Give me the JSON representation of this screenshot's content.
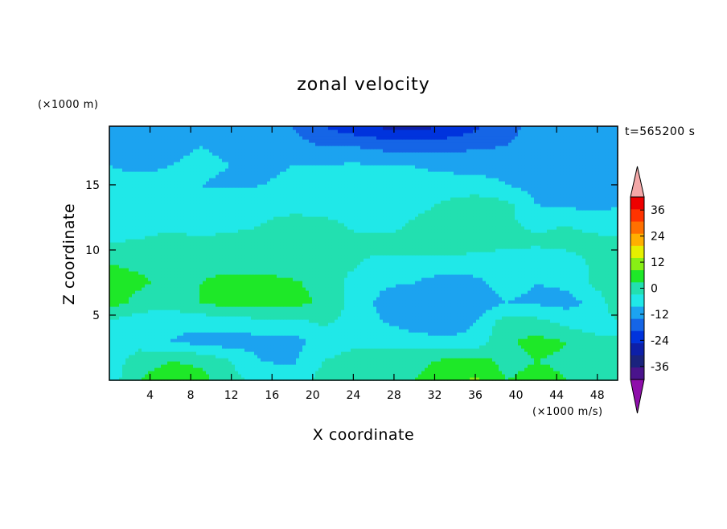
{
  "chart_data": {
    "type": "heatmap",
    "title": "zonal velocity",
    "xlabel": "X coordinate",
    "ylabel": "Z coordinate",
    "x_unit": "(×1000 m/s)",
    "y_unit": "(×1000 m)",
    "time_label": "t=565200 s",
    "xlim": [
      0,
      50
    ],
    "ylim": [
      0,
      19.5
    ],
    "x_ticks": [
      "4",
      "8",
      "12",
      "16",
      "20",
      "24",
      "28",
      "32",
      "36",
      "40",
      "44",
      "48"
    ],
    "y_ticks": [
      "5",
      "10",
      "15"
    ],
    "colorbar": {
      "labels": [
        "36",
        "24",
        "12",
        "0",
        "-12",
        "-24",
        "-36"
      ],
      "levels": [
        -42,
        -36,
        -30,
        -24,
        -18,
        -12,
        -6,
        0,
        6,
        12,
        18,
        24,
        30,
        36,
        42
      ],
      "colors": [
        "#4a148c",
        "#1a237e",
        "#0d1fa8",
        "#0033dd",
        "#1565e6",
        "#1ca3f0",
        "#20e8e8",
        "#22e0b0",
        "#1ee828",
        "#88f015",
        "#e6f000",
        "#ffb000",
        "#ff7000",
        "#ff3300",
        "#ee0000"
      ],
      "under_color": "#8e0eaa",
      "over_color": "#f4a8a8"
    },
    "x": [
      0,
      3,
      6,
      9,
      12,
      15,
      18,
      21,
      24,
      27,
      30,
      33,
      36,
      39,
      42,
      45,
      48,
      50
    ],
    "z": [
      0,
      1.5,
      3,
      4.5,
      6,
      7.5,
      9,
      10.5,
      12,
      13.5,
      15,
      16.5,
      18,
      19.5
    ],
    "values": [
      [
        -3,
        6,
        9,
        8,
        2,
        -2,
        -3,
        2,
        4,
        5,
        6,
        10,
        13,
        6,
        8,
        6,
        3,
        2
      ],
      [
        -4,
        4,
        6,
        5,
        0,
        -6,
        -7,
        0,
        3,
        4,
        4,
        7,
        9,
        4,
        6,
        5,
        2,
        1
      ],
      [
        -6,
        -3,
        -6,
        -8,
        -9,
        -8,
        -8,
        -4,
        -2,
        -2,
        -3,
        -4,
        -4,
        5,
        8,
        6,
        2,
        0
      ],
      [
        -1,
        -4,
        -5,
        -4,
        -3,
        -2,
        -2,
        1,
        -2,
        -6,
        -9,
        -11,
        -6,
        3,
        2,
        -2,
        -4,
        0
      ],
      [
        9,
        4,
        3,
        6,
        9,
        9,
        8,
        5,
        -2,
        -8,
        -11,
        -12,
        -10,
        -6,
        -7,
        -8,
        -4,
        5
      ],
      [
        8,
        7,
        4,
        6,
        10,
        8,
        7,
        4,
        -2,
        -5,
        -6,
        -9,
        -7,
        -4,
        -6,
        -5,
        2,
        6
      ],
      [
        6,
        5,
        3,
        3,
        2,
        4,
        2,
        1,
        1,
        -3,
        -3,
        -2,
        -4,
        -5,
        -6,
        -4,
        2,
        4
      ],
      [
        0,
        1,
        3,
        2,
        3,
        2,
        1,
        2,
        2,
        3,
        3,
        4,
        3,
        2,
        1,
        2,
        2,
        2
      ],
      [
        -3,
        -3,
        -2,
        -3,
        -2,
        0,
        3,
        2,
        -1,
        -3,
        1,
        3,
        3,
        1,
        -1,
        0,
        -2,
        -4
      ],
      [
        -4,
        -5,
        -6,
        -5,
        -2,
        -2,
        -3,
        -3,
        -5,
        -3,
        -2,
        1,
        4,
        2,
        -6,
        -7,
        -8,
        -6
      ],
      [
        -5,
        -4,
        -5,
        -6,
        -7,
        -6,
        -5,
        -6,
        -6,
        -6,
        -5,
        -4,
        -4,
        -6,
        -8,
        -10,
        -9,
        -8
      ],
      [
        -6,
        -7,
        -6,
        -5,
        -6,
        -7,
        -6,
        -6,
        -5,
        -6,
        -6,
        -7,
        -8,
        -7,
        -7,
        -8,
        -7,
        -6
      ],
      [
        -7,
        -8,
        -7,
        -6,
        -7,
        -8,
        -10,
        -12,
        -12,
        -14,
        -15,
        -14,
        -13,
        -12,
        -10,
        -8,
        -7,
        -6
      ],
      [
        -6,
        -6,
        -6,
        -7,
        -8,
        -9,
        -12,
        -18,
        -22,
        -25,
        -26,
        -24,
        -19,
        -14,
        -10,
        -7,
        -6,
        -6
      ]
    ]
  }
}
